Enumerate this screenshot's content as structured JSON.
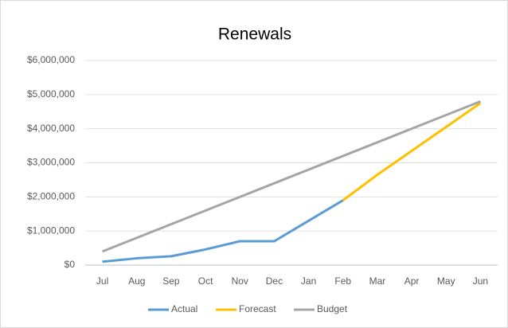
{
  "chart_data": {
    "type": "line",
    "title": "Renewals",
    "categories": [
      "Jul",
      "Aug",
      "Sep",
      "Oct",
      "Nov",
      "Dec",
      "Jan",
      "Feb",
      "Mar",
      "Apr",
      "May",
      "Jun"
    ],
    "series": [
      {
        "name": "Actual",
        "color": "#5b9bd5",
        "values": [
          100000,
          200000,
          260000,
          460000,
          700000,
          700000,
          1300000,
          1900000,
          null,
          null,
          null,
          null
        ]
      },
      {
        "name": "Forecast",
        "color": "#ffc000",
        "values": [
          null,
          null,
          null,
          null,
          null,
          null,
          null,
          1900000,
          2650000,
          3350000,
          4050000,
          4750000
        ]
      },
      {
        "name": "Budget",
        "color": "#a5a5a5",
        "values": [
          400000,
          800000,
          1200000,
          1600000,
          2000000,
          2400000,
          2800000,
          3200000,
          3600000,
          4000000,
          4400000,
          4800000
        ]
      }
    ],
    "ylim": [
      0,
      6000000
    ],
    "yticks": [
      {
        "value": 0,
        "label": "$0"
      },
      {
        "value": 1000000,
        "label": "$1,000,000"
      },
      {
        "value": 2000000,
        "label": "$2,000,000"
      },
      {
        "value": 3000000,
        "label": "$3,000,000"
      },
      {
        "value": 4000000,
        "label": "$4,000,000"
      },
      {
        "value": 5000000,
        "label": "$5,000,000"
      },
      {
        "value": 6000000,
        "label": "$6,000,000"
      }
    ],
    "grid": true,
    "legend": "bottom"
  }
}
